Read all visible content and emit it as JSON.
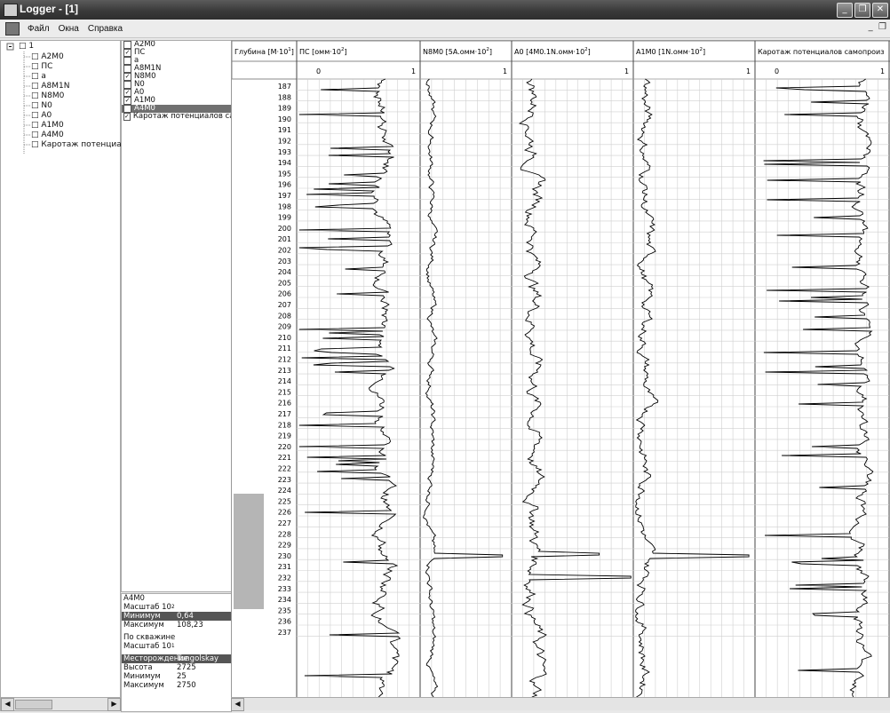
{
  "window": {
    "title": "Logger - [1]"
  },
  "menu": [
    "Файл",
    "Окна",
    "Справка"
  ],
  "tree": {
    "root": "1",
    "items": [
      "A2M0",
      "ПС",
      "a",
      "A8M1N",
      "N8M0",
      "N0",
      "A0",
      "A1M0",
      "A4M0",
      "Каротаж потенциал"
    ]
  },
  "curves": [
    {
      "label": "A2M0",
      "checked": false,
      "selected": false
    },
    {
      "label": "ПС",
      "checked": true,
      "selected": false
    },
    {
      "label": "a",
      "checked": false,
      "selected": false
    },
    {
      "label": "A8M1N",
      "checked": false,
      "selected": false
    },
    {
      "label": "N8M0",
      "checked": true,
      "selected": false
    },
    {
      "label": "N0",
      "checked": false,
      "selected": false
    },
    {
      "label": "A0",
      "checked": true,
      "selected": false
    },
    {
      "label": "A1M0",
      "checked": true,
      "selected": false
    },
    {
      "label": "A4M0",
      "checked": false,
      "selected": true
    },
    {
      "label": "Каротаж потенциалов сам",
      "checked": true,
      "selected": false
    }
  ],
  "curve_info": {
    "name": "A4M0",
    "scale_label": "Масштаб 10",
    "scale_exp": "2",
    "min_label": "Минимум",
    "min_value": "0,64",
    "max_label": "Максимум",
    "max_value": "108,23"
  },
  "well_info": {
    "header": "По скважине",
    "scale_label": "Масштаб 10",
    "scale_exp": "1",
    "field_label": "Месторождение",
    "field_value": "Tungolskay",
    "height_label": "Высота",
    "height_value": "2725",
    "min_label": "Минимум",
    "min_value": "25",
    "max_label": "Максимум",
    "max_value": "2750"
  },
  "depth_track": {
    "header": "Глубина  [М·10",
    "header_exp": "1",
    "header_close": "]"
  },
  "tracks": [
    {
      "header": "ПС [омм·10",
      "exp": "2",
      "close": "]",
      "scale_left": "0",
      "scale_right": "1"
    },
    {
      "header": "N8M0 [5A.омм·10",
      "exp": "2",
      "close": "]",
      "scale_left": "",
      "scale_right": "1"
    },
    {
      "header": "A0 [4M0.1N.омм·10",
      "exp": "2",
      "close": "]",
      "scale_left": "",
      "scale_right": "1"
    },
    {
      "header": "A1M0 [1N.омм·10",
      "exp": "2",
      "close": "]",
      "scale_left": "",
      "scale_right": "1"
    },
    {
      "header": "Каротаж потенциалов самопроиз",
      "exp": "",
      "close": "",
      "scale_left": "0",
      "scale_right": "1"
    }
  ],
  "depths": [
    187,
    188,
    189,
    190,
    191,
    192,
    193,
    194,
    195,
    196,
    197,
    198,
    199,
    200,
    201,
    202,
    203,
    204,
    205,
    206,
    207,
    208,
    209,
    210,
    211,
    212,
    213,
    214,
    215,
    216,
    217,
    218,
    219,
    220,
    221,
    222,
    223,
    224,
    225,
    226,
    227,
    228,
    229,
    230,
    231,
    232,
    233,
    234,
    235,
    236,
    237
  ],
  "colors": {
    "title_bar": "#3a3a3a",
    "selection": "#707070",
    "grid": "#c8c8c8",
    "curve": "#000000"
  }
}
